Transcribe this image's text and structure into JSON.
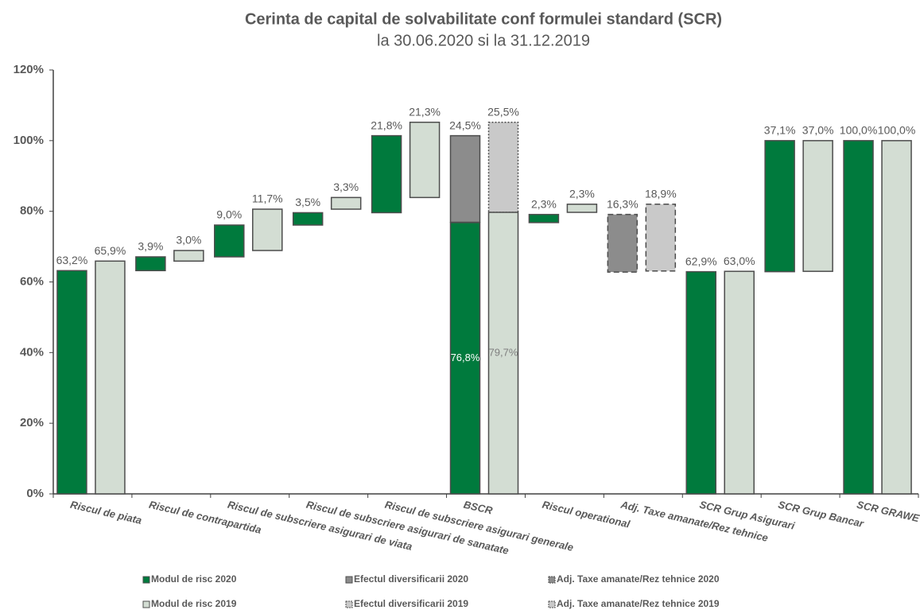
{
  "chart_data": {
    "type": "waterfall",
    "title": "Cerinta de capital de solvabilitate conf formulei standard (SCR)",
    "subtitle": "la 30.06.2020 si la 31.12.2019",
    "categories": [
      "Riscul de piata",
      "Riscul de contrapartida",
      "Riscul de subscriere asigurari de viata",
      "Riscul de subscriere asigurari de sanatate",
      "Riscul de subscriere asigurari generale",
      "BSCR",
      "Riscul operational",
      "Adj. Taxe amanate/Rez tehnice",
      "SCR Grup Asigurari",
      "SCR Grup Bancar",
      "SCR GRAWE Group"
    ],
    "totals": [
      5,
      8,
      10
    ],
    "series": [
      {
        "name": "Modul de risc 2020",
        "color": "#007a3d",
        "border": "solid",
        "values": [
          63.2,
          3.9,
          9.0,
          3.5,
          21.8,
          76.8,
          2.3,
          null,
          62.9,
          37.1,
          100.0
        ],
        "value_labels": [
          "63,2%",
          "3,9%",
          "9,0%",
          "3,5%",
          "21,8%",
          "76,8%",
          "2,3%",
          null,
          "62,9%",
          "37,1%",
          "100,0%"
        ]
      },
      {
        "name": "Efectul diversificarii 2020",
        "color": "#8c8c8c",
        "border": "solid",
        "values": [
          null,
          null,
          null,
          null,
          null,
          -24.5,
          null,
          null,
          null,
          null,
          null
        ],
        "value_labels": [
          null,
          null,
          null,
          null,
          null,
          "24,5%",
          null,
          null,
          null,
          null,
          null
        ]
      },
      {
        "name": "Adj. Taxe amanate/Rez tehnice 2020",
        "color": "#8c8c8c",
        "border": "dashed",
        "values": [
          null,
          null,
          null,
          null,
          null,
          null,
          null,
          -16.3,
          null,
          null,
          null
        ],
        "value_labels": [
          null,
          null,
          null,
          null,
          null,
          null,
          null,
          "16,3%",
          null,
          null,
          null
        ]
      },
      {
        "name": "Modul de risc 2019",
        "color": "#d3ddd3",
        "border": "solid",
        "values": [
          65.9,
          3.0,
          11.7,
          3.3,
          21.3,
          79.7,
          2.3,
          null,
          63.0,
          37.0,
          100.0
        ],
        "value_labels": [
          "65,9%",
          "3,0%",
          "11,7%",
          "3,3%",
          "21,3%",
          "79,7%",
          "2,3%",
          null,
          "63,0%",
          "37,0%",
          "100,0%"
        ]
      },
      {
        "name": "Efectul diversificarii 2019",
        "color": "#c9c9c9",
        "border": "dotted",
        "values": [
          null,
          null,
          null,
          null,
          null,
          -25.5,
          null,
          null,
          null,
          null,
          null
        ],
        "value_labels": [
          null,
          null,
          null,
          null,
          null,
          "25,5%",
          null,
          null,
          null,
          null,
          null
        ]
      },
      {
        "name": "Adj. Taxe amanate/Rez tehnice 2019",
        "color": "#c9c9c9",
        "border": "dashed",
        "values": [
          null,
          null,
          null,
          null,
          null,
          null,
          null,
          -18.9,
          null,
          null,
          null
        ],
        "value_labels": [
          null,
          null,
          null,
          null,
          null,
          null,
          null,
          "18,9%",
          null,
          null,
          null
        ]
      }
    ],
    "ylim": [
      0,
      120
    ],
    "yticks": [
      {
        "value": 0,
        "label": "0%"
      },
      {
        "value": 20,
        "label": "20%"
      },
      {
        "value": 40,
        "label": "40%"
      },
      {
        "value": 60,
        "label": "60%"
      },
      {
        "value": 80,
        "label": "80%"
      },
      {
        "value": 100,
        "label": "100%"
      },
      {
        "value": 120,
        "label": "120%"
      }
    ],
    "grid": false
  }
}
